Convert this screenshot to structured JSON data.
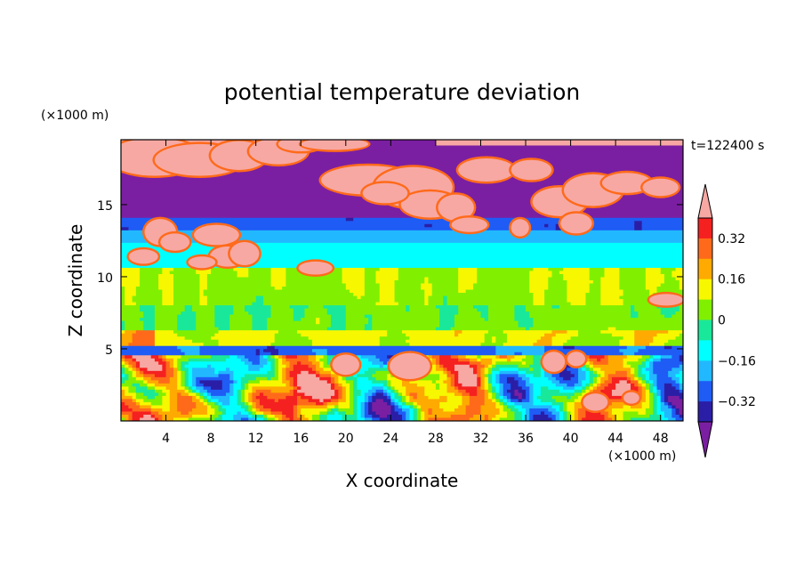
{
  "chart_data": {
    "type": "heatmap",
    "title": "potential temperature deviation",
    "xlabel": "X coordinate",
    "ylabel": "Z coordinate",
    "x_unit": "(×1000 m)",
    "y_unit": "(×1000 m)",
    "time_label": "t=122400 s",
    "xlim": [
      0,
      50
    ],
    "ylim": [
      0,
      19.5
    ],
    "x_ticks": [
      4,
      8,
      12,
      16,
      20,
      24,
      28,
      32,
      36,
      40,
      44,
      48
    ],
    "y_ticks": [
      5,
      10,
      15
    ],
    "colorbar": {
      "levels": [
        -0.4,
        -0.32,
        -0.24,
        -0.16,
        -0.08,
        0,
        0.08,
        0.16,
        0.24,
        0.32,
        0.4
      ],
      "tick_labels": [
        "0.32",
        "0.16",
        "0",
        "-0.16",
        "-0.32"
      ],
      "tick_values": [
        0.32,
        0.16,
        0,
        -0.16,
        -0.32
      ],
      "colors": [
        "#7b1fa2",
        "#2b1ea6",
        "#1e5cf5",
        "#22b8ff",
        "#00ffff",
        "#19e89a",
        "#80f000",
        "#f7f700",
        "#ffaa00",
        "#ff6a1a",
        "#f52020",
        "#f7a8a3"
      ],
      "extend": "both"
    },
    "bands": [
      {
        "z": [
          0,
          4.6
        ],
        "value": "mixed"
      },
      {
        "z": [
          4.6,
          6.0
        ],
        "value": 0.0
      },
      {
        "z": [
          6.0,
          10.5
        ],
        "value": 0.05
      },
      {
        "z": [
          10.5,
          12.3
        ],
        "value": -0.12
      },
      {
        "z": [
          12.3,
          13.3
        ],
        "value": -0.2
      },
      {
        "z": [
          13.3,
          14.0
        ],
        "value": -0.3
      },
      {
        "z": [
          14.0,
          16.5
        ],
        "value": -0.38
      },
      {
        "z": [
          16.5,
          19.5
        ],
        "value": "mixed"
      }
    ]
  }
}
